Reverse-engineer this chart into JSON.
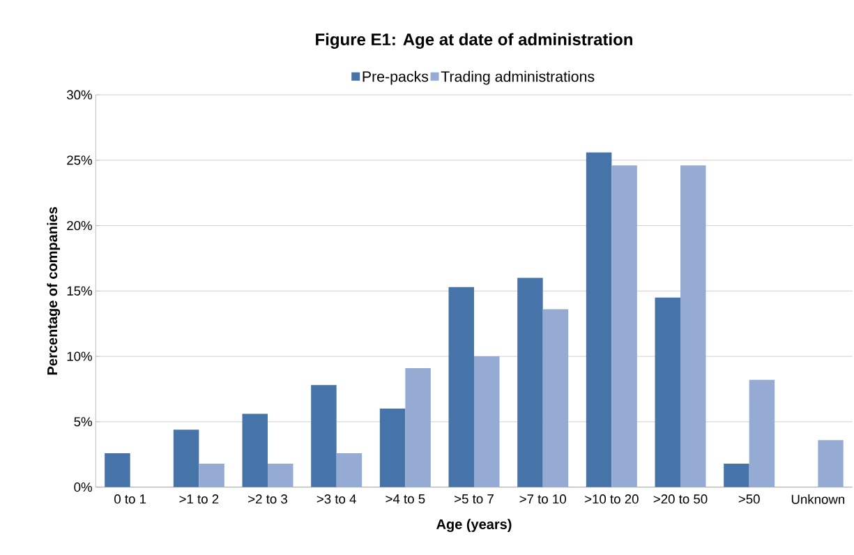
{
  "chart_data": {
    "type": "bar",
    "title": "Figure E1: Age at date of administration",
    "xlabel": "Age (years)",
    "ylabel": "Percentage of companies",
    "categories": [
      "0 to 1",
      ">1 to 2",
      ">2 to 3",
      ">3 to 4",
      ">4 to 5",
      ">5 to 7",
      ">7 to 10",
      ">10 to 20",
      ">20 to 50",
      ">50",
      "Unknown"
    ],
    "series": [
      {
        "name": "Pre-packs",
        "color": "#4673a8",
        "values": [
          2.6,
          4.4,
          5.6,
          7.8,
          6.0,
          15.3,
          16.0,
          25.6,
          14.5,
          1.8,
          0
        ]
      },
      {
        "name": "Trading administrations",
        "color": "#95abd3",
        "values": [
          0,
          1.8,
          1.8,
          2.6,
          9.1,
          10.0,
          13.6,
          24.6,
          24.6,
          8.2,
          3.6
        ]
      }
    ],
    "ylim": [
      0,
      30
    ],
    "yticks": [
      {
        "value": 0,
        "label": "0%"
      },
      {
        "value": 5,
        "label": "5%"
      },
      {
        "value": 10,
        "label": "10%"
      },
      {
        "value": 15,
        "label": "15%"
      },
      {
        "value": 20,
        "label": "20%"
      },
      {
        "value": 25,
        "label": "25%"
      },
      {
        "value": 30,
        "label": "30%"
      }
    ],
    "grid": "y",
    "legend": "top"
  }
}
